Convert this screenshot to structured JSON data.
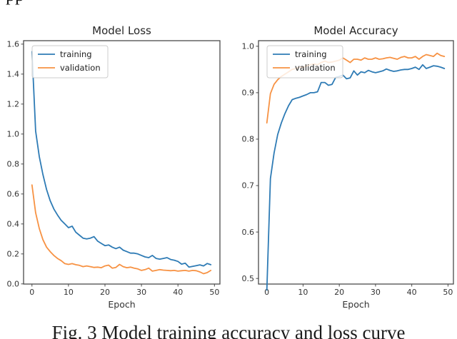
{
  "page": {
    "top_fragment": "pp",
    "caption": "Fig. 3 Model training accuracy and loss curve"
  },
  "chart_data": [
    {
      "type": "line",
      "title": "Model Loss",
      "xlabel": "Epoch",
      "legend_position": "upper-left",
      "grid": false,
      "xlim": [
        -2.3,
        51.5
      ],
      "ylim": [
        -0.001,
        1.623
      ],
      "xticks": [
        0,
        10,
        20,
        30,
        40,
        50
      ],
      "xtick_labels": [
        "0",
        "10",
        "20",
        "30",
        "40",
        "50"
      ],
      "yticks": [
        0.0,
        0.2,
        0.4,
        0.6,
        0.8,
        1.0,
        1.2,
        1.4,
        1.6
      ],
      "ytick_labels": [
        "0.0",
        "0.2",
        "0.4",
        "0.6",
        "0.8",
        "1.0",
        "1.2",
        "1.4",
        "1.6"
      ],
      "x": [
        0,
        1,
        2,
        3,
        4,
        5,
        6,
        7,
        8,
        9,
        10,
        11,
        12,
        13,
        14,
        15,
        16,
        17,
        18,
        19,
        20,
        21,
        22,
        23,
        24,
        25,
        26,
        27,
        28,
        29,
        30,
        31,
        32,
        33,
        34,
        35,
        36,
        37,
        38,
        39,
        40,
        41,
        42,
        43,
        44,
        45,
        46,
        47,
        48,
        49
      ],
      "series": [
        {
          "name": "training",
          "color": "#2e7bb5",
          "values": [
            1.55,
            1.02,
            0.85,
            0.73,
            0.63,
            0.555,
            0.5,
            0.46,
            0.425,
            0.4,
            0.375,
            0.385,
            0.345,
            0.325,
            0.305,
            0.3,
            0.305,
            0.315,
            0.285,
            0.27,
            0.255,
            0.26,
            0.245,
            0.235,
            0.245,
            0.225,
            0.215,
            0.205,
            0.205,
            0.2,
            0.19,
            0.18,
            0.175,
            0.19,
            0.17,
            0.165,
            0.17,
            0.175,
            0.163,
            0.158,
            0.15,
            0.132,
            0.138,
            0.112,
            0.117,
            0.122,
            0.127,
            0.12,
            0.136,
            0.128
          ]
        },
        {
          "name": "validation",
          "color": "#f79243",
          "values": [
            0.66,
            0.475,
            0.37,
            0.295,
            0.245,
            0.215,
            0.19,
            0.17,
            0.155,
            0.135,
            0.13,
            0.135,
            0.128,
            0.124,
            0.115,
            0.12,
            0.115,
            0.11,
            0.112,
            0.108,
            0.12,
            0.125,
            0.105,
            0.11,
            0.13,
            0.115,
            0.108,
            0.112,
            0.105,
            0.1,
            0.09,
            0.095,
            0.105,
            0.085,
            0.09,
            0.095,
            0.092,
            0.09,
            0.088,
            0.09,
            0.085,
            0.088,
            0.09,
            0.085,
            0.09,
            0.088,
            0.08,
            0.068,
            0.075,
            0.09
          ]
        }
      ]
    },
    {
      "type": "line",
      "title": "Model Accuracy",
      "xlabel": "Epoch",
      "legend_position": "upper-left",
      "grid": false,
      "xlim": [
        -2.3,
        51.5
      ],
      "ylim": [
        0.488,
        1.012
      ],
      "xticks": [
        0,
        10,
        20,
        30,
        40,
        50
      ],
      "xtick_labels": [
        "0",
        "10",
        "20",
        "30",
        "40",
        "50"
      ],
      "yticks": [
        0.5,
        0.6,
        0.7,
        0.8,
        0.9,
        1.0
      ],
      "ytick_labels": [
        "0.5",
        "0.6",
        "0.7",
        "0.8",
        "0.9",
        "1.0"
      ],
      "x": [
        0,
        1,
        2,
        3,
        4,
        5,
        6,
        7,
        8,
        9,
        10,
        11,
        12,
        13,
        14,
        15,
        16,
        17,
        18,
        19,
        20,
        21,
        22,
        23,
        24,
        25,
        26,
        27,
        28,
        29,
        30,
        31,
        32,
        33,
        34,
        35,
        36,
        37,
        38,
        39,
        40,
        41,
        42,
        43,
        44,
        45,
        46,
        47,
        48,
        49
      ],
      "series": [
        {
          "name": "training",
          "color": "#2e7bb5",
          "values": [
            0.475,
            0.715,
            0.77,
            0.81,
            0.835,
            0.855,
            0.872,
            0.885,
            0.888,
            0.89,
            0.893,
            0.896,
            0.9,
            0.9,
            0.902,
            0.922,
            0.922,
            0.916,
            0.918,
            0.933,
            0.935,
            0.938,
            0.93,
            0.932,
            0.947,
            0.938,
            0.945,
            0.943,
            0.948,
            0.945,
            0.943,
            0.945,
            0.947,
            0.951,
            0.948,
            0.946,
            0.947,
            0.949,
            0.95,
            0.95,
            0.952,
            0.955,
            0.95,
            0.96,
            0.952,
            0.955,
            0.958,
            0.957,
            0.955,
            0.952
          ]
        },
        {
          "name": "validation",
          "color": "#f79243",
          "values": [
            0.835,
            0.898,
            0.918,
            0.928,
            0.935,
            0.94,
            0.945,
            0.95,
            0.952,
            0.955,
            0.955,
            0.958,
            0.96,
            0.962,
            0.96,
            0.965,
            0.968,
            0.965,
            0.966,
            0.968,
            0.97,
            0.975,
            0.97,
            0.965,
            0.972,
            0.972,
            0.97,
            0.975,
            0.972,
            0.972,
            0.975,
            0.972,
            0.973,
            0.975,
            0.976,
            0.974,
            0.972,
            0.976,
            0.978,
            0.975,
            0.975,
            0.978,
            0.972,
            0.978,
            0.982,
            0.98,
            0.978,
            0.985,
            0.98,
            0.978
          ]
        }
      ]
    }
  ],
  "style": {
    "spine_color": "#4a4a4a",
    "tick_text_color": "#333333",
    "title_color": "#262626",
    "legend_border_color": "#cccccc"
  }
}
